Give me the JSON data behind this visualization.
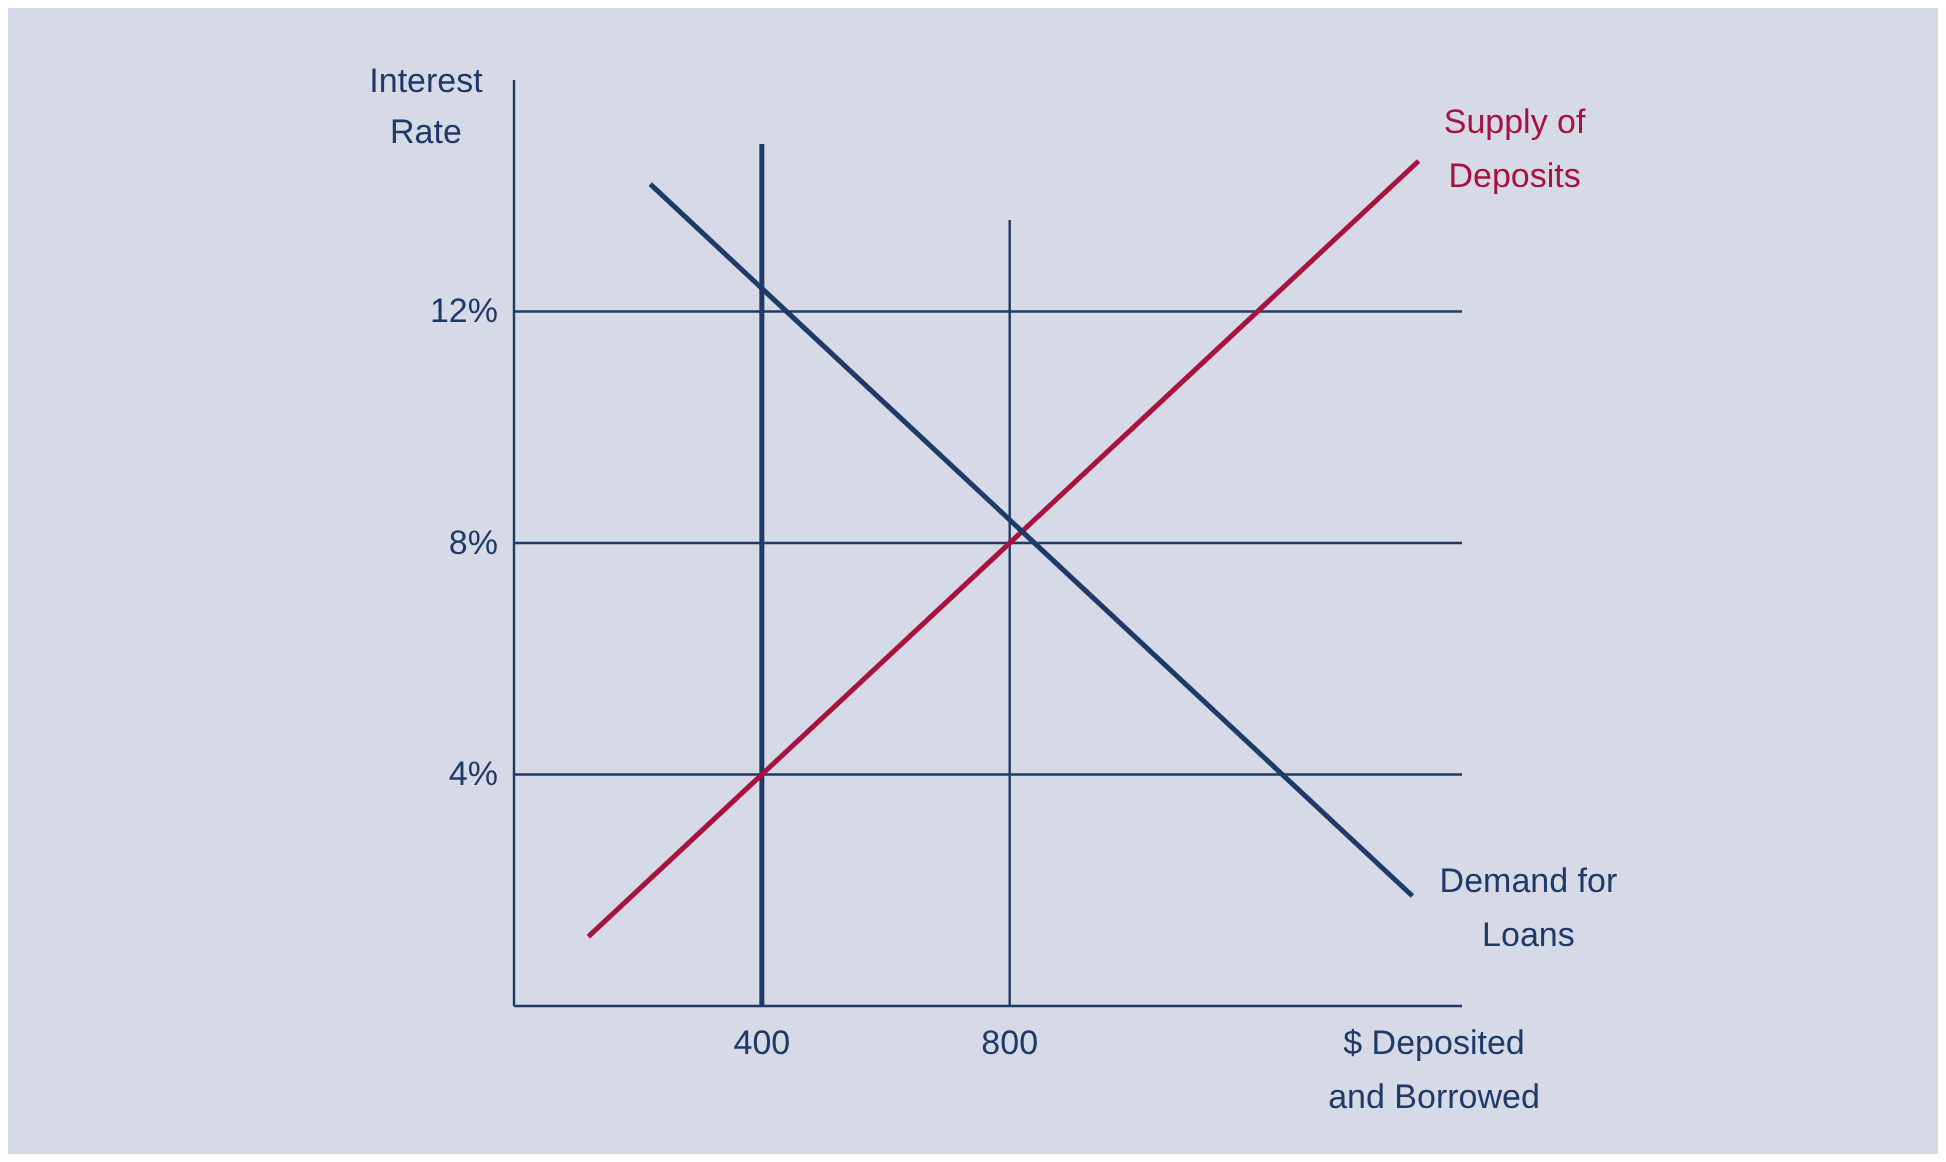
{
  "chart_data": {
    "type": "line",
    "xlabel": "$ Deposited and Borrowed",
    "ylabel": "Interest Rate",
    "xlim": [
      0,
      1530
    ],
    "ylim": [
      0,
      16
    ],
    "xticks": [
      400,
      800
    ],
    "yticks": [
      {
        "value": 4,
        "label": "4%"
      },
      {
        "value": 8,
        "label": "8%"
      },
      {
        "value": 12,
        "label": "12%"
      }
    ],
    "grid": "y",
    "marker": "none",
    "line_style": "solid",
    "series": [
      {
        "name": "Supply of Deposits",
        "color": "#a8123e",
        "x": [
          120,
          1460
        ],
        "values": [
          1.2,
          14.6
        ]
      },
      {
        "name": "Demand for Loans",
        "color": "#1f3a68",
        "x": [
          220,
          1450
        ],
        "values": [
          14.2,
          1.9
        ]
      }
    ],
    "ref_lines": [
      {
        "axis": "x",
        "value": 400,
        "color": "#1f3a68"
      },
      {
        "axis": "x",
        "value": 800,
        "color": "#1f3a68"
      }
    ]
  }
}
